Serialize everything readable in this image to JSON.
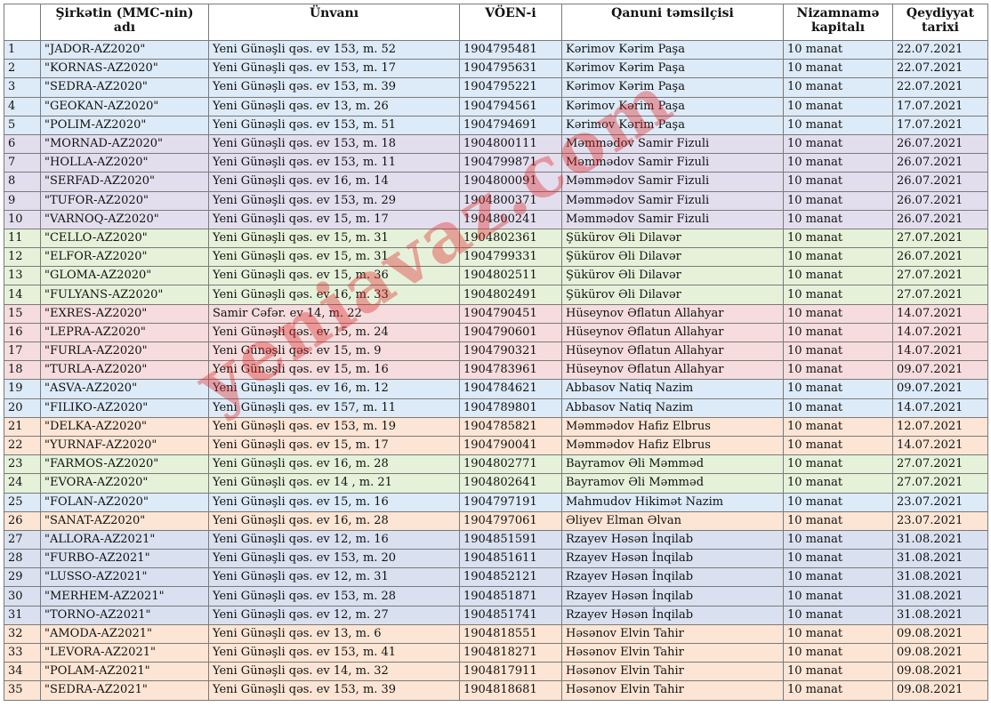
{
  "table": {
    "headers": [
      "Şirkətin (MMC-nin) adı",
      "Ünvanı",
      "VÖEN-i",
      "Qanuni təmsilçisi",
      "Nizamnamə kapitalı",
      "Qeydiyyat tarixi"
    ],
    "rows": [
      {
        "no": "1",
        "name": "\"JADOR-AZ2020\"",
        "address": "Yeni Günəşli qəs. ev 153, m. 52",
        "voen": "1904795481",
        "rep": "Kərimov Kərim Paşa",
        "capital": "10 manat",
        "date": "22.07.2021",
        "group": "blue"
      },
      {
        "no": "2",
        "name": "\"KORNAS-AZ2020\"",
        "address": "Yeni Günəşli qəs. ev 153, m. 17",
        "voen": "1904795631",
        "rep": "Kərimov Kərim Paşa",
        "capital": "10 manat",
        "date": "22.07.2021",
        "group": "blue"
      },
      {
        "no": "3",
        "name": "\"SEDRA-AZ2020\"",
        "address": "Yeni Günəşli qəs. ev 153, m. 39",
        "voen": "1904795221",
        "rep": "Kərimov Kərim Paşa",
        "capital": "10 manat",
        "date": "22.07.2021",
        "group": "blue"
      },
      {
        "no": "4",
        "name": "\"GEOKAN-AZ2020\"",
        "address": "Yeni Günəşli qəs. ev 13, m. 26",
        "voen": "1904794561",
        "rep": "Kərimov Kərim Paşa",
        "capital": "10 manat",
        "date": "17.07.2021",
        "group": "blue"
      },
      {
        "no": "5",
        "name": "\"POLIM-AZ2020\"",
        "address": "Yeni Günəşli qəs. ev 153, m. 51",
        "voen": "1904794691",
        "rep": "Kərimov Kərim Paşa",
        "capital": "10 manat",
        "date": "17.07.2021",
        "group": "blue"
      },
      {
        "no": "6",
        "name": "\"MORNAD-AZ2020\"",
        "address": "Yeni Günəşli qəs. ev 153, m. 18",
        "voen": "1904800111",
        "rep": "Məmmədov Samir Fizuli",
        "capital": "10 manat",
        "date": "26.07.2021",
        "group": "lilac"
      },
      {
        "no": "7",
        "name": "\"HOLLA-AZ2020\"",
        "address": "Yeni Günəşli qəs. ev 153, m. 11",
        "voen": "1904799871",
        "rep": "Məmmədov Samir Fizuli",
        "capital": "10 manat",
        "date": "26.07.2021",
        "group": "lilac"
      },
      {
        "no": "8",
        "name": "\"SERFAD-AZ2020\"",
        "address": "Yeni Günəşli qəs. ev 16, m. 14",
        "voen": "1904800091",
        "rep": "Məmmədov Samir Fizuli",
        "capital": "10 manat",
        "date": "26.07.2021",
        "group": "lilac"
      },
      {
        "no": "9",
        "name": "\"TUFOR-AZ2020\"",
        "address": "Yeni Günəşli qəs. ev 153, m. 29",
        "voen": "1904800371",
        "rep": "Məmmədov Samir Fizuli",
        "capital": "10 manat",
        "date": "26.07.2021",
        "group": "lilac"
      },
      {
        "no": "10",
        "name": "\"VARNOQ-AZ2020\"",
        "address": "Yeni Günəşli qəs. ev 15, m. 17",
        "voen": "1904800241",
        "rep": "Məmmədov Samir Fizuli",
        "capital": "10 manat",
        "date": "26.07.2021",
        "group": "lilac"
      },
      {
        "no": "11",
        "name": "\"CELLO-AZ2020\"",
        "address": "Yeni Günəşli qəs. ev 15, m. 31",
        "voen": "1904802361",
        "rep": "Şükürov Əli Dilavər",
        "capital": "10 manat",
        "date": "27.07.2021",
        "group": "green"
      },
      {
        "no": "12",
        "name": "\"ELFOR-AZ2020\"",
        "address": "Yeni Günəşli qəs. ev 15, m. 31",
        "voen": "1904799331",
        "rep": "Şükürov Əli Dilavər",
        "capital": "10 manat",
        "date": "26.07.2021",
        "group": "green"
      },
      {
        "no": "13",
        "name": "\"GLOMA-AZ2020\"",
        "address": "Yeni Günəşli qəs. ev 15, m. 36",
        "voen": "1904802511",
        "rep": "Şükürov Əli Dilavər",
        "capital": "10 manat",
        "date": "27.07.2021",
        "group": "green"
      },
      {
        "no": "14",
        "name": "\"FULYANS-AZ2020\"",
        "address": "Yeni Günəşli qəs. ev 16, m. 33",
        "voen": "1904802491",
        "rep": "Şükürov Əli Dilavər",
        "capital": "10 manat",
        "date": "27.07.2021",
        "group": "green"
      },
      {
        "no": "15",
        "name": "\"EXRES-AZ2020\"",
        "address": "Samir Cəfər. ev 14, m. 22",
        "voen": "1904790451",
        "rep": "Hüseynov Əflatun Allahyar",
        "capital": "10 manat",
        "date": "14.07.2021",
        "group": "pink"
      },
      {
        "no": "16",
        "name": "\"LEPRA-AZ2020\"",
        "address": "Yeni Günəşli qəs. ev 15, m. 24",
        "voen": "1904790601",
        "rep": "Hüseynov Əflatun Allahyar",
        "capital": "10 manat",
        "date": "14.07.2021",
        "group": "pink"
      },
      {
        "no": "17",
        "name": "\"FURLA-AZ2020\"",
        "address": "Yeni Günəşli qəs. ev 15, m. 9",
        "voen": "1904790321",
        "rep": "Hüseynov Əflatun Allahyar",
        "capital": "10 manat",
        "date": "14.07.2021",
        "group": "pink"
      },
      {
        "no": "18",
        "name": "\"TURLA-AZ2020\"",
        "address": "Yeni Günəşli qəs. ev 15, m. 16",
        "voen": "1904783961",
        "rep": "Hüseynov Əflatun Allahyar",
        "capital": "10 manat",
        "date": "09.07.2021",
        "group": "pink"
      },
      {
        "no": "19",
        "name": "\"ASVA-AZ2020\"",
        "address": "Yeni Günəşli qəs. ev 16, m. 12",
        "voen": "1904784621",
        "rep": "Abbasov Natiq Nazim",
        "capital": "10 manat",
        "date": "09.07.2021",
        "group": "blue"
      },
      {
        "no": "20",
        "name": "\"FILIKO-AZ2020\"",
        "address": "Yeni Günəşli qəs. ev 157, m. 11",
        "voen": "1904789801",
        "rep": "Abbasov Natiq Nazim",
        "capital": "10 manat",
        "date": "14.07.2021",
        "group": "blue"
      },
      {
        "no": "21",
        "name": "\"DELKA-AZ2020\"",
        "address": "Yeni Günəşli qəs. ev 153, m. 19",
        "voen": "1904785821",
        "rep": "Məmmədov Hafiz Elbrus",
        "capital": "10 manat",
        "date": "12.07.2021",
        "group": "peach"
      },
      {
        "no": "22",
        "name": "\"YURNAF-AZ2020\"",
        "address": "Yeni Günəşli qəs. ev 15, m. 17",
        "voen": "1904790041",
        "rep": "Məmmədov Hafiz Elbrus",
        "capital": "10 manat",
        "date": "14.07.2021",
        "group": "peach"
      },
      {
        "no": "23",
        "name": "\"FARMOS-AZ2020\"",
        "address": "Yeni Günəşli qəs. ev 16, m. 28",
        "voen": "1904802771",
        "rep": "Bayramov Əli Məmməd",
        "capital": "10 manat",
        "date": "27.07.2021",
        "group": "green"
      },
      {
        "no": "24",
        "name": "\"EVORA-AZ2020\"",
        "address": "Yeni Günəşli qəs. ev 14 , m. 21",
        "voen": "1904802641",
        "rep": "Bayramov Əli Məmməd",
        "capital": "10 manat",
        "date": "27.07.2021",
        "group": "green"
      },
      {
        "no": "25",
        "name": "\"FOLAN-AZ2020\"",
        "address": "Yeni Günəşli qəs. ev 15, m. 16",
        "voen": "1904797191",
        "rep": "Mahmudov Hikimət Nazim",
        "capital": "10 manat",
        "date": "23.07.2021",
        "group": "blue"
      },
      {
        "no": "26",
        "name": "\"SANAT-AZ2020\"",
        "address": "Yeni Günəşli qəs. ev 16, m. 28",
        "voen": "1904797061",
        "rep": "Əliyev Elman Əlvan",
        "capital": "10 manat",
        "date": "23.07.2021",
        "group": "peach"
      },
      {
        "no": "27",
        "name": "\"ALLORA-AZ2021\"",
        "address": "Yeni Günəşli qəs. ev 12, m. 16",
        "voen": "1904851591",
        "rep": "Rzayev Həsən İnqilab",
        "capital": "10 manat",
        "date": "31.08.2021",
        "group": "steel"
      },
      {
        "no": "28",
        "name": "\"FURBO-AZ2021\"",
        "address": "Yeni Günəşli qəs. ev 153, m. 20",
        "voen": "1904851611",
        "rep": "Rzayev Həsən İnqilab",
        "capital": "10 manat",
        "date": "31.08.2021",
        "group": "steel"
      },
      {
        "no": "29",
        "name": "\"LUSSO-AZ2021\"",
        "address": "Yeni Günəşli qəs. ev 12, m. 31",
        "voen": "1904852121",
        "rep": "Rzayev Həsən İnqilab",
        "capital": "10 manat",
        "date": "31.08.2021",
        "group": "steel"
      },
      {
        "no": "30",
        "name": "\"MERHEM-AZ2021\"",
        "address": "Yeni Günəşli qəs. ev 153, m. 28",
        "voen": "1904851871",
        "rep": "Rzayev Həsən İnqilab",
        "capital": "10 manat",
        "date": "31.08.2021",
        "group": "steel"
      },
      {
        "no": "31",
        "name": "\"TORNO-AZ2021\"",
        "address": "Yeni Günəşli qəs. ev 12, m. 27",
        "voen": "1904851741",
        "rep": "Rzayev Həsən İnqilab",
        "capital": "10 manat",
        "date": "31.08.2021",
        "group": "steel"
      },
      {
        "no": "32",
        "name": "\"AMODA-AZ2021\"",
        "address": "Yeni Günəşli qəs. ev 13, m. 6",
        "voen": "1904818551",
        "rep": "Həsənov Elvin Tahir",
        "capital": "10 manat",
        "date": "09.08.2021",
        "group": "peach"
      },
      {
        "no": "33",
        "name": "\"LEVORA-AZ2021\"",
        "address": "Yeni Günəşli qəs. ev 153, m. 41",
        "voen": "1904818271",
        "rep": "Həsənov Elvin Tahir",
        "capital": "10 manat",
        "date": "09.08.2021",
        "group": "peach"
      },
      {
        "no": "34",
        "name": "\"POLAM-AZ2021\"",
        "address": "Yeni Günəşli qəs. ev 14, m. 32",
        "voen": "1904817911",
        "rep": "Həsənov Elvin Tahir",
        "capital": "10 manat",
        "date": "09.08.2021",
        "group": "peach"
      },
      {
        "no": "35",
        "name": "\"SEDRA-AZ2021\"",
        "address": "Yeni Günəşli qəs. ev 153, m. 39",
        "voen": "1904818681",
        "rep": "Həsənov Elvin Tahir",
        "capital": "10 manat",
        "date": "09.08.2021",
        "group": "peach"
      }
    ]
  },
  "watermark": {
    "text": "yeniavaz.com",
    "color": "#de2828"
  },
  "colors": {
    "blue": "#ddeaf7",
    "green": "#e6f1da",
    "lilac": "#e3deee",
    "pink": "#f6dcdc",
    "peach": "#fce5d4",
    "steel": "#d9e1f0"
  }
}
